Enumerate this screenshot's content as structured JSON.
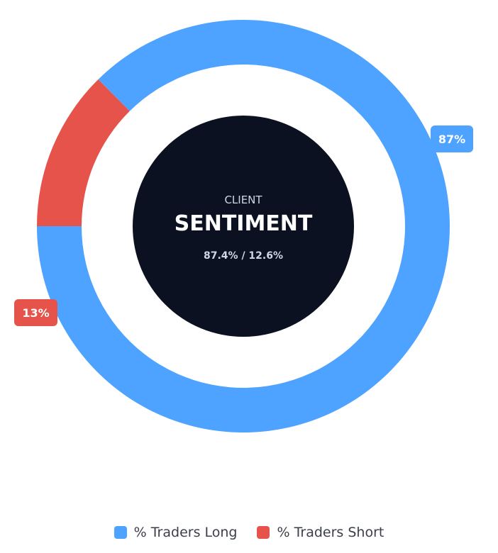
{
  "chart_data": {
    "type": "pie",
    "variant": "donut",
    "title": "",
    "center": {
      "small_label": "CLIENT",
      "big_label": "SENTIMENT",
      "ratio_label": "87.4% / 12.6%"
    },
    "series": [
      {
        "name": "% Traders Long",
        "value": 87.4,
        "badge": "87%",
        "color": "#4da3ff"
      },
      {
        "name": "% Traders Short",
        "value": 12.6,
        "badge": "13%",
        "color": "#e5534b"
      }
    ],
    "start_angle_deg": 270,
    "direction": "clockwise",
    "center_color": "#0b1120",
    "legend_position": "bottom"
  }
}
